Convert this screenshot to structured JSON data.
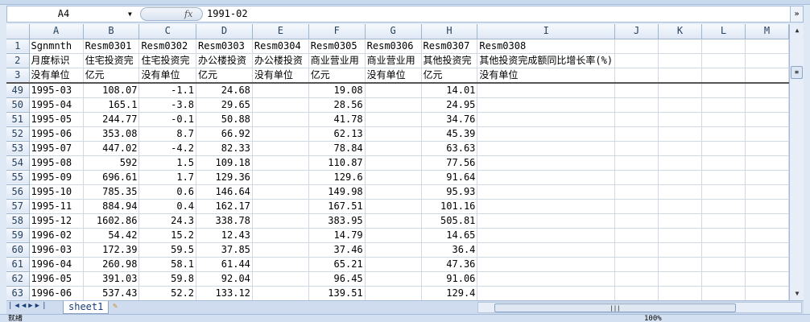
{
  "formula_bar": {
    "name_box": "A4",
    "fx_icon": "fx",
    "value": "1991-02"
  },
  "columns": [
    "A",
    "B",
    "C",
    "D",
    "E",
    "F",
    "G",
    "H",
    "I",
    "J",
    "K",
    "L",
    "M"
  ],
  "header_rows": [
    {
      "num": "1",
      "cells": [
        "Sgnmnth",
        "Resm0301",
        "Resm0302",
        "Resm0303",
        "Resm0304",
        "Resm0305",
        "Resm0306",
        "Resm0307",
        "Resm0308",
        "",
        "",
        "",
        ""
      ]
    },
    {
      "num": "2",
      "cells": [
        "月度标识",
        "住宅投资完",
        "住宅投资完",
        "办公楼投资",
        "办公楼投资",
        "商业营业用",
        "商业营业用",
        "其他投资完",
        "其他投资完成额同比增长率(%)",
        "",
        "",
        "",
        ""
      ]
    },
    {
      "num": "3",
      "cells": [
        "没有单位",
        "亿元",
        "没有单位",
        "亿元",
        "没有单位",
        "亿元",
        "没有单位",
        "亿元",
        "没有单位",
        "",
        "",
        "",
        ""
      ]
    }
  ],
  "rows": [
    {
      "num": "49",
      "cells": [
        "1995-03",
        "108.07",
        "-1.1",
        "24.68",
        "",
        "19.08",
        "",
        "14.01",
        "",
        "",
        "",
        "",
        ""
      ]
    },
    {
      "num": "50",
      "cells": [
        "1995-04",
        "165.1",
        "-3.8",
        "29.65",
        "",
        "28.56",
        "",
        "24.95",
        "",
        "",
        "",
        "",
        ""
      ]
    },
    {
      "num": "51",
      "cells": [
        "1995-05",
        "244.77",
        "-0.1",
        "50.88",
        "",
        "41.78",
        "",
        "34.76",
        "",
        "",
        "",
        "",
        ""
      ]
    },
    {
      "num": "52",
      "cells": [
        "1995-06",
        "353.08",
        "8.7",
        "66.92",
        "",
        "62.13",
        "",
        "45.39",
        "",
        "",
        "",
        "",
        ""
      ]
    },
    {
      "num": "53",
      "cells": [
        "1995-07",
        "447.02",
        "-4.2",
        "82.33",
        "",
        "78.84",
        "",
        "63.63",
        "",
        "",
        "",
        "",
        ""
      ]
    },
    {
      "num": "54",
      "cells": [
        "1995-08",
        "592",
        "1.5",
        "109.18",
        "",
        "110.87",
        "",
        "77.56",
        "",
        "",
        "",
        "",
        ""
      ]
    },
    {
      "num": "55",
      "cells": [
        "1995-09",
        "696.61",
        "1.7",
        "129.36",
        "",
        "129.6",
        "",
        "91.64",
        "",
        "",
        "",
        "",
        ""
      ]
    },
    {
      "num": "56",
      "cells": [
        "1995-10",
        "785.35",
        "0.6",
        "146.64",
        "",
        "149.98",
        "",
        "95.93",
        "",
        "",
        "",
        "",
        ""
      ]
    },
    {
      "num": "57",
      "cells": [
        "1995-11",
        "884.94",
        "0.4",
        "162.17",
        "",
        "167.51",
        "",
        "101.16",
        "",
        "",
        "",
        "",
        ""
      ]
    },
    {
      "num": "58",
      "cells": [
        "1995-12",
        "1602.86",
        "24.3",
        "338.78",
        "",
        "383.95",
        "",
        "505.81",
        "",
        "",
        "",
        "",
        ""
      ]
    },
    {
      "num": "59",
      "cells": [
        "1996-02",
        "54.42",
        "15.2",
        "12.43",
        "",
        "14.79",
        "",
        "14.65",
        "",
        "",
        "",
        "",
        ""
      ]
    },
    {
      "num": "60",
      "cells": [
        "1996-03",
        "172.39",
        "59.5",
        "37.85",
        "",
        "37.46",
        "",
        "36.4",
        "",
        "",
        "",
        "",
        ""
      ]
    },
    {
      "num": "61",
      "cells": [
        "1996-04",
        "260.98",
        "58.1",
        "61.44",
        "",
        "65.21",
        "",
        "47.36",
        "",
        "",
        "",
        "",
        ""
      ]
    },
    {
      "num": "62",
      "cells": [
        "1996-05",
        "391.03",
        "59.8",
        "92.04",
        "",
        "96.45",
        "",
        "91.06",
        "",
        "",
        "",
        "",
        ""
      ]
    },
    {
      "num": "63",
      "cells": [
        "1996-06",
        "537.43",
        "52.2",
        "133.12",
        "",
        "139.51",
        "",
        "129.4",
        "",
        "",
        "",
        "",
        ""
      ]
    }
  ],
  "sheet_tabs": [
    {
      "label": "sheet1",
      "active": true
    }
  ],
  "status": {
    "ready": "就绪",
    "zoom": "100%"
  }
}
